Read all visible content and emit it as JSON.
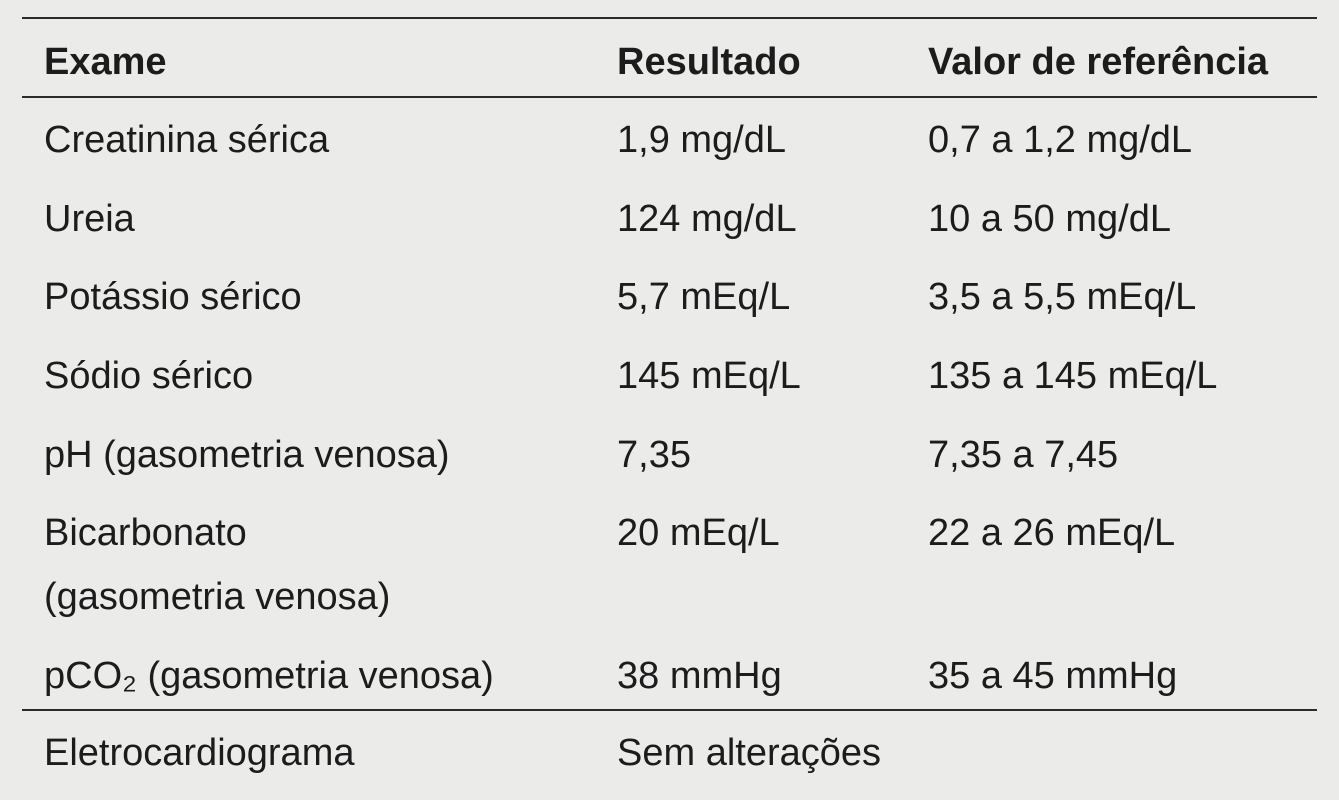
{
  "table": {
    "header": [
      "Exame",
      "Resultado",
      "Valor de referência"
    ],
    "rows": [
      [
        "Creatinina sérica",
        "1,9 mg/dL",
        "0,7 a 1,2 mg/dL"
      ],
      [
        "Ureia",
        "124 mg/dL",
        "10 a 50 mg/dL"
      ],
      [
        "Potássio sérico",
        "5,7 mEq/L",
        "3,5 a 5,5 mEq/L"
      ],
      [
        "Sódio sérico",
        "145 mEq/L",
        "135 a 145 mEq/L"
      ],
      [
        "pH (gasometria venosa)",
        "7,35",
        "7,35 a 7,45"
      ],
      [
        "Bicarbonato\n(gasometria venosa)",
        "20 mEq/L",
        "22 a 26 mEq/L"
      ],
      [
        "pCO₂ (gasometria venosa)",
        "38 mmHg",
        "35 a 45 mmHg"
      ]
    ],
    "footer": [
      "Eletrocardiograma",
      "Sem alterações"
    ]
  }
}
